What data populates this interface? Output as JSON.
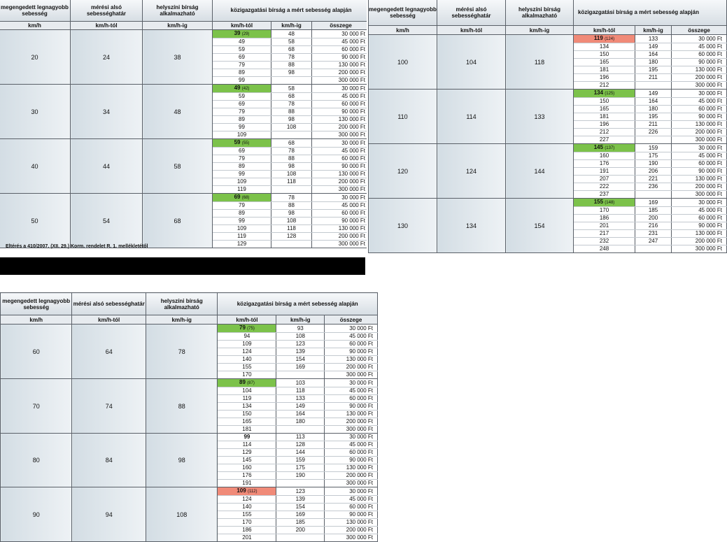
{
  "header": {
    "limit": "megengedett legnagyobb sebesség",
    "lower": "mérési alsó sebességhatár",
    "onsite": "helyszíni bírság alkalmazható",
    "fine": "közigazgatási bírság a mért sebesség alapján",
    "kmh": "km/h",
    "kmh_tol": "km/h-tól",
    "kmh_ig": "km/h-ig",
    "osszege": "összege"
  },
  "note": "Eltérés a 410/2007. (XII. 29.) Korm. rendelet R. 1. mellékletétől",
  "colors": {
    "green": "#7cc24a",
    "red": "#f08a78"
  },
  "tables": [
    {
      "groups": [
        {
          "limit": "20",
          "lower": "24",
          "onsite": "38",
          "rows": [
            {
              "from": "39",
              "paren": "(29)",
              "to": "48",
              "amount": "30 000 Ft",
              "hl": "green"
            },
            {
              "from": "49",
              "to": "58",
              "amount": "45 000 Ft"
            },
            {
              "from": "59",
              "to": "68",
              "amount": "60 000 Ft"
            },
            {
              "from": "69",
              "to": "78",
              "amount": "90 000 Ft"
            },
            {
              "from": "79",
              "to": "88",
              "amount": "130 000 Ft"
            },
            {
              "from": "89",
              "to": "98",
              "amount": "200 000 Ft"
            },
            {
              "from": "99",
              "to": "",
              "amount": "300 000 Ft"
            }
          ]
        },
        {
          "limit": "30",
          "lower": "34",
          "onsite": "48",
          "rows": [
            {
              "from": "49",
              "paren": "(42)",
              "to": "58",
              "amount": "30 000 Ft",
              "hl": "green"
            },
            {
              "from": "59",
              "to": "68",
              "amount": "45 000 Ft"
            },
            {
              "from": "69",
              "to": "78",
              "amount": "60 000 Ft"
            },
            {
              "from": "79",
              "to": "88",
              "amount": "90 000 Ft"
            },
            {
              "from": "89",
              "to": "98",
              "amount": "130 000 Ft"
            },
            {
              "from": "99",
              "to": "108",
              "amount": "200 000 Ft"
            },
            {
              "from": "109",
              "to": "",
              "amount": "300 000 Ft"
            }
          ]
        },
        {
          "limit": "40",
          "lower": "44",
          "onsite": "58",
          "rows": [
            {
              "from": "59",
              "paren": "(55)",
              "to": "68",
              "amount": "30 000 Ft",
              "hl": "green"
            },
            {
              "from": "69",
              "to": "78",
              "amount": "45 000 Ft"
            },
            {
              "from": "79",
              "to": "88",
              "amount": "60 000 Ft"
            },
            {
              "from": "89",
              "to": "98",
              "amount": "90 000 Ft"
            },
            {
              "from": "99",
              "to": "108",
              "amount": "130 000 Ft"
            },
            {
              "from": "109",
              "to": "118",
              "amount": "200 000 Ft"
            },
            {
              "from": "119",
              "to": "",
              "amount": "300 000 Ft"
            }
          ]
        },
        {
          "limit": "50",
          "lower": "54",
          "onsite": "68",
          "rows": [
            {
              "from": "69",
              "paren": "(68)",
              "to": "78",
              "amount": "30 000 Ft",
              "hl": "green"
            },
            {
              "from": "79",
              "to": "88",
              "amount": "45 000 Ft"
            },
            {
              "from": "89",
              "to": "98",
              "amount": "60 000 Ft"
            },
            {
              "from": "99",
              "to": "108",
              "amount": "90 000 Ft"
            },
            {
              "from": "109",
              "to": "118",
              "amount": "130 000 Ft"
            },
            {
              "from": "119",
              "to": "128",
              "amount": "200 000 Ft"
            },
            {
              "from": "129",
              "to": "",
              "amount": "300 000 Ft"
            }
          ]
        }
      ]
    },
    {
      "groups": [
        {
          "limit": "100",
          "lower": "104",
          "onsite": "118",
          "rows": [
            {
              "from": "119",
              "paren": "(124)",
              "to": "133",
              "amount": "30 000 Ft",
              "hl": "red"
            },
            {
              "from": "134",
              "to": "149",
              "amount": "45 000 Ft"
            },
            {
              "from": "150",
              "to": "164",
              "amount": "60 000 Ft"
            },
            {
              "from": "165",
              "to": "180",
              "amount": "90 000 Ft"
            },
            {
              "from": "181",
              "to": "195",
              "amount": "130 000 Ft"
            },
            {
              "from": "196",
              "to": "211",
              "amount": "200 000 Ft"
            },
            {
              "from": "212",
              "to": "",
              "amount": "300 000 Ft"
            }
          ]
        },
        {
          "limit": "110",
          "lower": "114",
          "onsite": "133",
          "rows": [
            {
              "from": "134",
              "paren": "(125)",
              "to": "149",
              "amount": "30 000 Ft",
              "hl": "green"
            },
            {
              "from": "150",
              "to": "164",
              "amount": "45 000 Ft"
            },
            {
              "from": "165",
              "to": "180",
              "amount": "60 000 Ft"
            },
            {
              "from": "181",
              "to": "195",
              "amount": "90 000 Ft"
            },
            {
              "from": "196",
              "to": "211",
              "amount": "130 000 Ft"
            },
            {
              "from": "212",
              "to": "226",
              "amount": "200 000 Ft"
            },
            {
              "from": "227",
              "to": "",
              "amount": "300 000 Ft"
            }
          ]
        },
        {
          "limit": "120",
          "lower": "124",
          "onsite": "144",
          "rows": [
            {
              "from": "145",
              "paren": "(137)",
              "to": "159",
              "amount": "30 000 Ft",
              "hl": "green"
            },
            {
              "from": "160",
              "to": "175",
              "amount": "45 000 Ft"
            },
            {
              "from": "176",
              "to": "190",
              "amount": "60 000 Ft"
            },
            {
              "from": "191",
              "to": "206",
              "amount": "90 000 Ft"
            },
            {
              "from": "207",
              "to": "221",
              "amount": "130 000 Ft"
            },
            {
              "from": "222",
              "to": "236",
              "amount": "200 000 Ft"
            },
            {
              "from": "237",
              "to": "",
              "amount": "300 000 Ft"
            }
          ]
        },
        {
          "limit": "130",
          "lower": "134",
          "onsite": "154",
          "rows": [
            {
              "from": "155",
              "paren": "(148)",
              "to": "169",
              "amount": "30 000 Ft",
              "hl": "green"
            },
            {
              "from": "170",
              "to": "185",
              "amount": "45 000 Ft"
            },
            {
              "from": "186",
              "to": "200",
              "amount": "60 000 Ft"
            },
            {
              "from": "201",
              "to": "216",
              "amount": "90 000 Ft"
            },
            {
              "from": "217",
              "to": "231",
              "amount": "130 000 Ft"
            },
            {
              "from": "232",
              "to": "247",
              "amount": "200 000 Ft"
            },
            {
              "from": "248",
              "to": "",
              "amount": "300 000 Ft"
            }
          ]
        }
      ]
    },
    {
      "groups": [
        {
          "limit": "60",
          "lower": "64",
          "onsite": "78",
          "rows": [
            {
              "from": "79",
              "paren": "(75)",
              "to": "93",
              "amount": "30 000 Ft",
              "hl": "green"
            },
            {
              "from": "94",
              "to": "108",
              "amount": "45 000 Ft"
            },
            {
              "from": "109",
              "to": "123",
              "amount": "60 000 Ft"
            },
            {
              "from": "124",
              "to": "139",
              "amount": "90 000 Ft"
            },
            {
              "from": "140",
              "to": "154",
              "amount": "130 000 Ft"
            },
            {
              "from": "155",
              "to": "169",
              "amount": "200 000 Ft"
            },
            {
              "from": "170",
              "to": "",
              "amount": "300 000 Ft"
            }
          ]
        },
        {
          "limit": "70",
          "lower": "74",
          "onsite": "88",
          "rows": [
            {
              "from": "89",
              "paren": "(87)",
              "to": "103",
              "amount": "30 000 Ft",
              "hl": "green"
            },
            {
              "from": "104",
              "to": "118",
              "amount": "45 000 Ft"
            },
            {
              "from": "119",
              "to": "133",
              "amount": "60 000 Ft"
            },
            {
              "from": "134",
              "to": "149",
              "amount": "90 000 Ft"
            },
            {
              "from": "150",
              "to": "164",
              "amount": "130 000 Ft"
            },
            {
              "from": "165",
              "to": "180",
              "amount": "200 000 Ft"
            },
            {
              "from": "181",
              "to": "",
              "amount": "300 000 Ft"
            }
          ]
        },
        {
          "limit": "80",
          "lower": "84",
          "onsite": "98",
          "rows": [
            {
              "from": "99",
              "to": "113",
              "amount": "30 000 Ft",
              "bold": true
            },
            {
              "from": "114",
              "to": "128",
              "amount": "45 000 Ft"
            },
            {
              "from": "129",
              "to": "144",
              "amount": "60 000 Ft"
            },
            {
              "from": "145",
              "to": "159",
              "amount": "90 000 Ft"
            },
            {
              "from": "160",
              "to": "175",
              "amount": "130 000 Ft"
            },
            {
              "from": "176",
              "to": "190",
              "amount": "200 000 Ft"
            },
            {
              "from": "191",
              "to": "",
              "amount": "300 000 Ft"
            }
          ]
        },
        {
          "limit": "90",
          "lower": "94",
          "onsite": "108",
          "rows": [
            {
              "from": "109",
              "paren": "(112)",
              "to": "123",
              "amount": "30 000 Ft",
              "hl": "red"
            },
            {
              "from": "124",
              "to": "139",
              "amount": "45 000 Ft"
            },
            {
              "from": "140",
              "to": "154",
              "amount": "60 000 Ft"
            },
            {
              "from": "155",
              "to": "169",
              "amount": "90 000 Ft"
            },
            {
              "from": "170",
              "to": "185",
              "amount": "130 000 Ft"
            },
            {
              "from": "186",
              "to": "200",
              "amount": "200 000 Ft"
            },
            {
              "from": "201",
              "to": "",
              "amount": "300 000 Ft"
            }
          ]
        }
      ]
    }
  ]
}
